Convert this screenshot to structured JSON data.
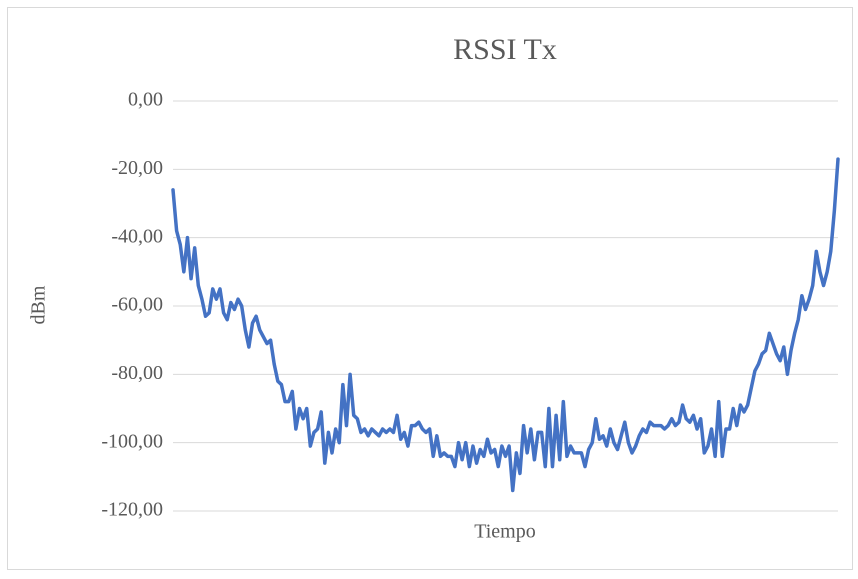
{
  "chart_data": {
    "type": "line",
    "title": "RSSI Tx",
    "xlabel": "Tiempo",
    "ylabel": "dBm",
    "ylim": [
      -120,
      0
    ],
    "yticks": [
      {
        "value": 0,
        "label": "0,00"
      },
      {
        "value": -20,
        "label": "-20,00"
      },
      {
        "value": -40,
        "label": "-40,00"
      },
      {
        "value": -60,
        "label": "-60,00"
      },
      {
        "value": -80,
        "label": "-80,00"
      },
      {
        "value": -100,
        "label": "-100,00"
      },
      {
        "value": -120,
        "label": "-120,00"
      }
    ],
    "grid": true,
    "series": [
      {
        "name": "RSSI Tx",
        "color": "#4472c4",
        "values": [
          -26,
          -38,
          -42,
          -50,
          -40,
          -52,
          -43,
          -54,
          -58,
          -63,
          -62,
          -55,
          -58,
          -55,
          -62,
          -64,
          -59,
          -61,
          -58,
          -60,
          -67,
          -72,
          -65,
          -63,
          -67,
          -69,
          -71,
          -70,
          -77,
          -82,
          -83,
          -88,
          -88,
          -85,
          -96,
          -90,
          -93,
          -90,
          -101,
          -97,
          -96,
          -91,
          -106,
          -97,
          -103,
          -96,
          -100,
          -83,
          -95,
          -80,
          -92,
          -93,
          -97,
          -96,
          -98,
          -96,
          -97,
          -98,
          -96,
          -97,
          -96,
          -97,
          -92,
          -99,
          -97,
          -101,
          -95,
          -95,
          -94,
          -96,
          -97,
          -96,
          -104,
          -98,
          -104,
          -103,
          -104,
          -104,
          -107,
          -100,
          -105,
          -100,
          -107,
          -101,
          -106,
          -102,
          -104,
          -99,
          -103,
          -102,
          -107,
          -101,
          -104,
          -101,
          -114,
          -103,
          -109,
          -95,
          -103,
          -96,
          -105,
          -97,
          -97,
          -107,
          -90,
          -107,
          -92,
          -105,
          -88,
          -104,
          -101,
          -103,
          -103,
          -103,
          -107,
          -102,
          -100,
          -93,
          -99,
          -98,
          -101,
          -96,
          -100,
          -102,
          -98,
          -94,
          -100,
          -103,
          -101,
          -98,
          -96,
          -97,
          -94,
          -95,
          -95,
          -95,
          -96,
          -95,
          -93,
          -95,
          -94,
          -89,
          -93,
          -94,
          -92,
          -96,
          -93,
          -103,
          -101,
          -96,
          -104,
          -88,
          -104,
          -96,
          -96,
          -90,
          -95,
          -89,
          -91,
          -89,
          -84,
          -79,
          -77,
          -74,
          -73,
          -68,
          -71,
          -74,
          -76,
          -72,
          -80,
          -73,
          -68,
          -64,
          -57,
          -61,
          -58,
          -54,
          -44,
          -50,
          -54,
          -50,
          -44,
          -32,
          -17
        ]
      }
    ]
  }
}
